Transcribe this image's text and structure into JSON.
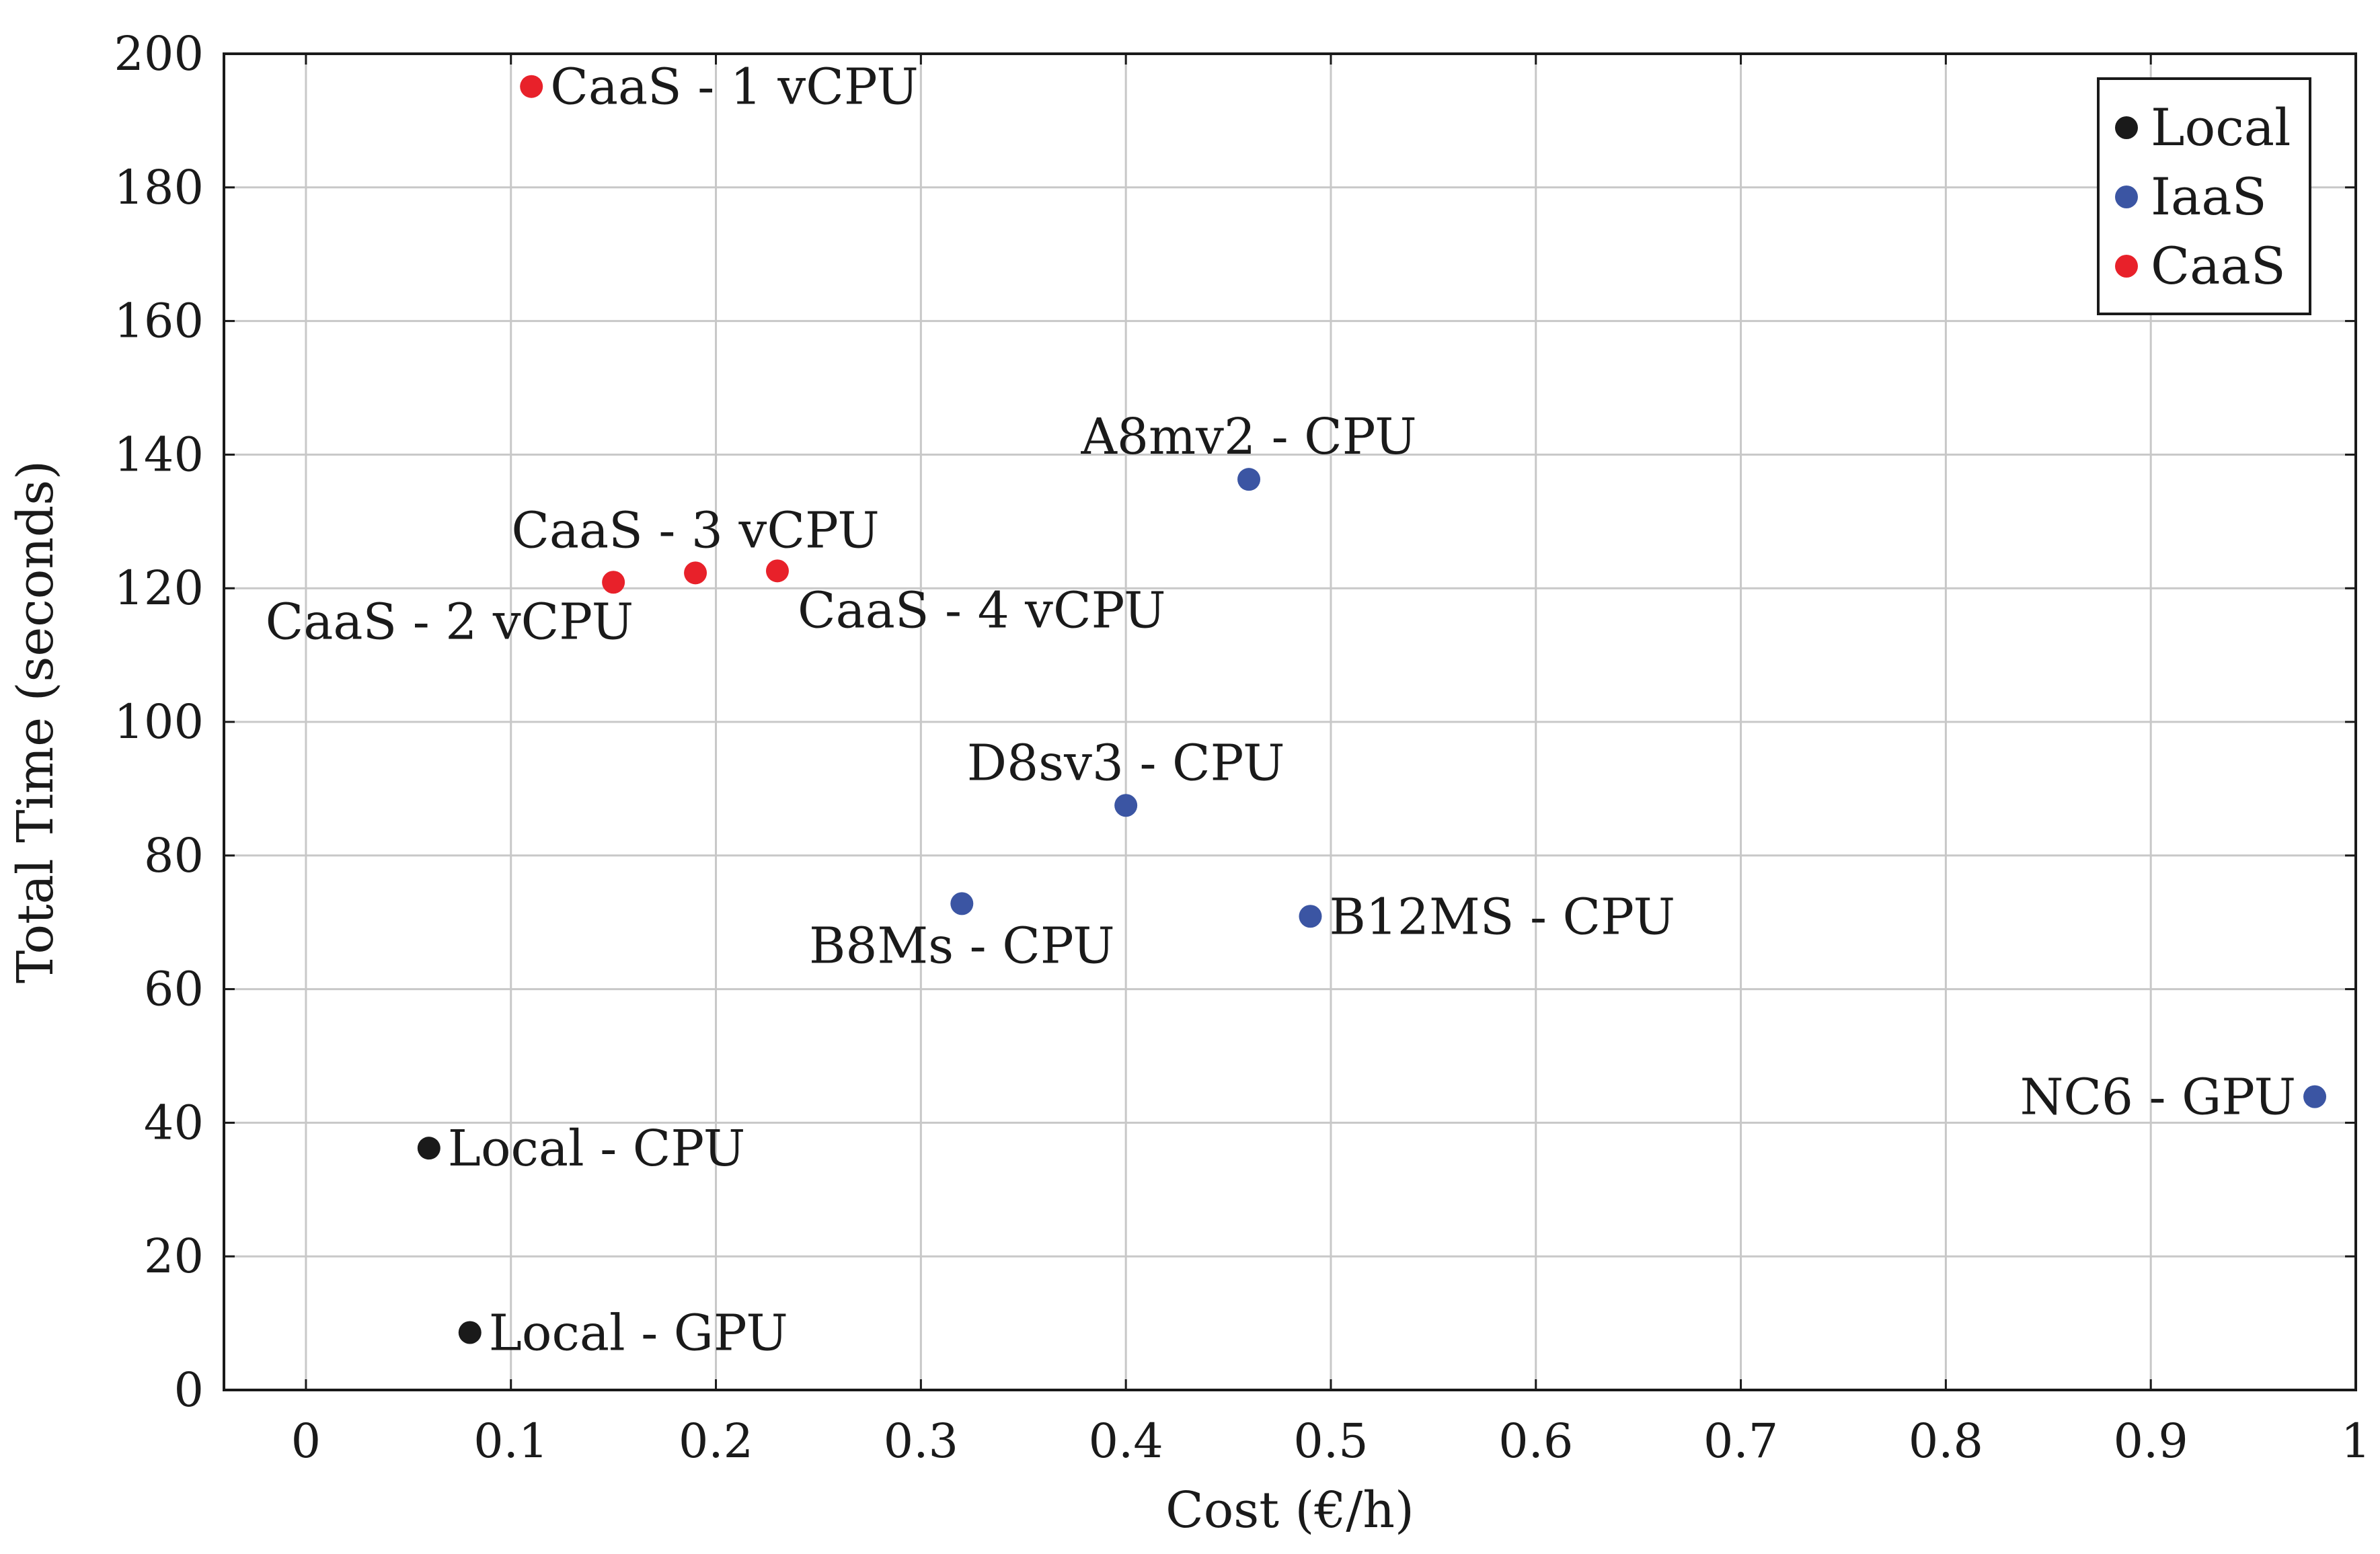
{
  "chart_data": {
    "type": "scatter",
    "xlabel": "Cost (€/h)",
    "ylabel": "Total Time (seconds)",
    "xlim": [
      -0.04,
      1.0
    ],
    "ylim": [
      0,
      200
    ],
    "x_ticks": [
      0,
      0.1,
      0.2,
      0.3,
      0.4,
      0.5,
      0.6,
      0.7,
      0.8,
      0.9,
      1
    ],
    "x_tick_labels": [
      "0",
      "0.1",
      "0.2",
      "0.3",
      "0.4",
      "0.5",
      "0.6",
      "0.7",
      "0.8",
      "0.9",
      "1"
    ],
    "y_ticks": [
      0,
      20,
      40,
      60,
      80,
      100,
      120,
      140,
      160,
      180,
      200
    ],
    "y_tick_labels": [
      "0",
      "20",
      "40",
      "60",
      "80",
      "100",
      "120",
      "140",
      "160",
      "180",
      "200"
    ],
    "grid": true,
    "legend_position": "top-right",
    "series": [
      {
        "name": "Local",
        "color": "#1a1a1a",
        "points": [
          {
            "x": 0.06,
            "y": 36.2,
            "label": "Local - CPU",
            "label_anchor": "right"
          },
          {
            "x": 0.08,
            "y": 8.6,
            "label": "Local - GPU",
            "label_anchor": "right"
          }
        ]
      },
      {
        "name": "IaaS",
        "color": "#3b55a3",
        "points": [
          {
            "x": 0.46,
            "y": 136.3,
            "label": "A8mv2 - CPU",
            "label_anchor": "above"
          },
          {
            "x": 0.4,
            "y": 87.5,
            "label": "D8sv3 - CPU",
            "label_anchor": "above"
          },
          {
            "x": 0.32,
            "y": 72.8,
            "label": "B8Ms - CPU",
            "label_anchor": "below"
          },
          {
            "x": 0.49,
            "y": 70.9,
            "label": "B12MS - CPU",
            "label_anchor": "right"
          },
          {
            "x": 0.98,
            "y": 43.9,
            "label": "NC6 - GPU",
            "label_anchor": "left"
          }
        ]
      },
      {
        "name": "CaaS",
        "color": "#e8212a",
        "points": [
          {
            "x": 0.11,
            "y": 195.1,
            "label": "CaaS - 1 vCPU",
            "label_anchor": "right"
          },
          {
            "x": 0.15,
            "y": 120.9,
            "label": "CaaS - 2 vCPU",
            "label_anchor": "below-left"
          },
          {
            "x": 0.19,
            "y": 122.3,
            "label": "CaaS - 3 vCPU",
            "label_anchor": "above"
          },
          {
            "x": 0.23,
            "y": 122.6,
            "label": "CaaS - 4 vCPU",
            "label_anchor": "below-right"
          }
        ]
      }
    ]
  }
}
